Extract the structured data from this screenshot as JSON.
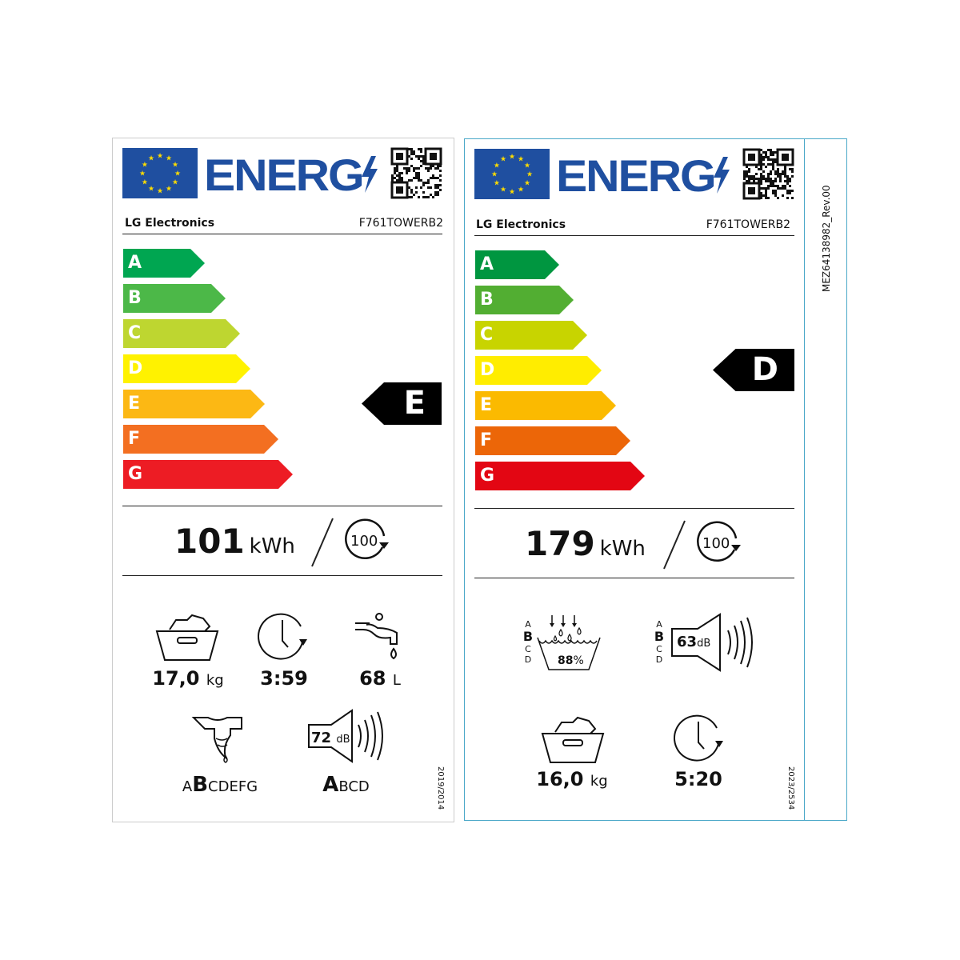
{
  "labels": [
    {
      "brand_text": "ENERG",
      "supplier": "LG Electronics",
      "model": "F761TOWERB2",
      "classes": [
        "A",
        "B",
        "C",
        "D",
        "E",
        "F",
        "G"
      ],
      "class_colors": [
        "#00a651",
        "#4cb848",
        "#bed630",
        "#fff200",
        "#fcb814",
        "#f36f21",
        "#ed1c24"
      ],
      "rating": "E",
      "energy_value": "101",
      "energy_unit": "kWh",
      "cycles_icon_text": "100",
      "capacity_value": "17,0",
      "capacity_unit": "kg",
      "duration": "3:59",
      "water_value": "68",
      "water_unit": "L",
      "spin_scale_pre": "A",
      "spin_class": "B",
      "spin_scale_post": "CDEFG",
      "noise_value": "72",
      "noise_unit": "dB",
      "noise_class": "A",
      "noise_scale_post": "BCD",
      "regulation": "2019/2014"
    },
    {
      "brand_text": "ENERG",
      "supplier": "LG Electronics",
      "model": "F761TOWERB2",
      "classes": [
        "A",
        "B",
        "C",
        "D",
        "E",
        "F",
        "G"
      ],
      "class_colors": [
        "#009640",
        "#52ae32",
        "#c8d400",
        "#ffed00",
        "#fbba00",
        "#ec6608",
        "#e30613"
      ],
      "rating": "D",
      "energy_value": "179",
      "energy_unit": "kWh",
      "cycles_icon_text": "100",
      "spin_scale": [
        "A",
        "B",
        "C",
        "D"
      ],
      "spin_class": "B",
      "spin_efficiency": "88",
      "spin_unit": "%",
      "noise_scale": [
        "A",
        "B",
        "C",
        "D"
      ],
      "noise_class": "B",
      "noise_value": "63",
      "noise_unit": "dB",
      "capacity_value": "16,0",
      "capacity_unit": "kg",
      "duration": "5:20",
      "regulation": "2023/2534",
      "side_code": "MEZ64138982_Rev.00"
    }
  ],
  "colors": {
    "eu_blue": "#1f4fa0",
    "eu_star": "#ffdd00",
    "right_border": "#4aa8c8"
  }
}
